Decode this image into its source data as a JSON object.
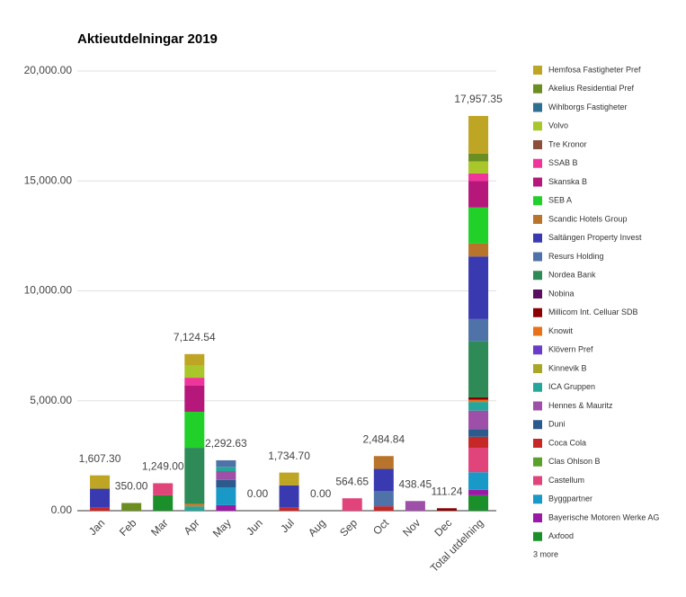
{
  "chart_data": {
    "type": "stacked_bar",
    "title": "Aktieutdelningar 2019",
    "categories": [
      "Jan",
      "Feb",
      "Mar",
      "Apr",
      "May",
      "Jun",
      "Jul",
      "Aug",
      "Sep",
      "Oct",
      "Nov",
      "Dec",
      "Total utdelning"
    ],
    "total_labels": [
      "1,607.30",
      "350.00",
      "1,249.00",
      "7,124.54",
      "2,292.63",
      "0.00",
      "1,734.70",
      "0.00",
      "564.65",
      "2,484.84",
      "438.45",
      "111.24",
      "17,957.35"
    ],
    "ylim": [
      0,
      20000
    ],
    "yticks": [
      {
        "value": 0,
        "label": "0.00"
      },
      {
        "value": 5000,
        "label": "5,000.00"
      },
      {
        "value": 10000,
        "label": "10,000.00"
      },
      {
        "value": 15000,
        "label": "15,000.00"
      },
      {
        "value": 20000,
        "label": "20,000.00"
      }
    ],
    "grid": true,
    "legend_more": "3 more",
    "series": [
      {
        "name": "Hemfosa Fastigheter Pref",
        "color": "#bfa524",
        "values": [
          607.3,
          0,
          0,
          524.54,
          0,
          0,
          584.7,
          0,
          0,
          0,
          0,
          0,
          1716.54
        ]
      },
      {
        "name": "Akelius Residential Pref",
        "color": "#6b8e23",
        "values": [
          0,
          350,
          0,
          0,
          0,
          0,
          0,
          0,
          0,
          0,
          0,
          0,
          350
        ]
      },
      {
        "name": "Wihlborgs Fastigheter",
        "color": "#2f6f8f",
        "values": [
          0,
          0,
          0,
          0,
          0,
          0,
          0,
          0,
          0,
          0,
          0,
          0,
          0
        ]
      },
      {
        "name": "Volvo",
        "color": "#a9c62a",
        "values": [
          0,
          0,
          0,
          550,
          0,
          0,
          0,
          0,
          0,
          0,
          0,
          0,
          550
        ]
      },
      {
        "name": "Tre Kronor",
        "color": "#8b4f3a",
        "values": [
          0,
          0,
          0,
          0,
          0,
          0,
          0,
          0,
          0,
          0,
          0,
          0,
          0
        ]
      },
      {
        "name": "SSAB B",
        "color": "#f0359a",
        "values": [
          0,
          0,
          0,
          350,
          0,
          0,
          0,
          0,
          0,
          0,
          0,
          0,
          350
        ]
      },
      {
        "name": "Skanska B",
        "color": "#b5187a",
        "values": [
          0,
          0,
          0,
          1200,
          0,
          0,
          0,
          0,
          0,
          0,
          0,
          0,
          1200
        ]
      },
      {
        "name": "SEB A",
        "color": "#22d02a",
        "values": [
          0,
          0,
          0,
          1640,
          0,
          0,
          0,
          0,
          0,
          0,
          0,
          0,
          1640
        ]
      },
      {
        "name": "Scandic Hotels Group",
        "color": "#b8742a",
        "values": [
          0,
          0,
          0,
          0,
          0,
          0,
          0,
          0,
          0,
          584.84,
          0,
          0,
          584.84
        ]
      },
      {
        "name": "Saltängen Property Invest",
        "color": "#3a3ab0",
        "values": [
          850,
          0,
          0,
          0,
          0,
          0,
          1000,
          0,
          0,
          1000,
          0,
          0,
          2850
        ]
      },
      {
        "name": "Resurs Holding",
        "color": "#4f73a8",
        "values": [
          0,
          0,
          0,
          0,
          300,
          0,
          0,
          0,
          0,
          700,
          0,
          0,
          1000
        ]
      },
      {
        "name": "Nordea Bank",
        "color": "#2e8b57",
        "values": [
          0,
          0,
          0,
          2560,
          0,
          0,
          0,
          0,
          0,
          0,
          0,
          0,
          2560
        ]
      },
      {
        "name": "Nobina",
        "color": "#5a1060",
        "values": [
          0,
          0,
          0,
          0,
          0,
          0,
          0,
          0,
          0,
          0,
          0,
          0,
          0
        ]
      },
      {
        "name": "Millicom Int. Celluar SDB",
        "color": "#8b0000",
        "values": [
          0,
          0,
          0,
          0,
          0,
          0,
          0,
          0,
          0,
          0,
          0,
          111.24,
          111.24
        ]
      },
      {
        "name": "Knowit",
        "color": "#e8711a",
        "values": [
          0,
          0,
          0,
          100,
          0,
          0,
          0,
          0,
          0,
          0,
          0,
          0,
          100
        ]
      },
      {
        "name": "Klövern Pref",
        "color": "#6a3cc8",
        "values": [
          0,
          0,
          0,
          0,
          0,
          0,
          0,
          0,
          0,
          0,
          0,
          0,
          0
        ]
      },
      {
        "name": "Kinnevik B",
        "color": "#a8a826",
        "values": [
          0,
          0,
          0,
          0,
          0,
          0,
          0,
          0,
          0,
          0,
          0,
          0,
          0
        ]
      },
      {
        "name": "ICA Gruppen",
        "color": "#26a69a",
        "values": [
          0,
          0,
          0,
          200,
          192.63,
          0,
          0,
          0,
          0,
          0,
          0,
          0,
          392.63
        ]
      },
      {
        "name": "Hennes & Mauritz",
        "color": "#9e4fa8",
        "values": [
          0,
          0,
          0,
          0,
          400,
          0,
          0,
          0,
          0,
          0,
          438.45,
          0,
          838.45
        ]
      },
      {
        "name": "Duni",
        "color": "#2b5a8c",
        "values": [
          0,
          0,
          0,
          0,
          350,
          0,
          0,
          0,
          0,
          0,
          0,
          0,
          350
        ]
      },
      {
        "name": "Coca Cola",
        "color": "#c62828",
        "values": [
          150,
          0,
          0,
          0,
          0,
          0,
          150,
          0,
          0,
          200,
          0,
          0,
          500
        ]
      },
      {
        "name": "Clas Ohlson B",
        "color": "#5aa02c",
        "values": [
          0,
          0,
          0,
          0,
          0,
          0,
          0,
          0,
          0,
          0,
          0,
          0,
          0
        ]
      },
      {
        "name": "Castellum",
        "color": "#e0447a",
        "values": [
          0,
          0,
          549,
          0,
          0,
          0,
          0,
          0,
          564.65,
          0,
          0,
          0,
          1113.65
        ]
      },
      {
        "name": "Byggpartner",
        "color": "#1899c8",
        "values": [
          0,
          0,
          0,
          0,
          800,
          0,
          0,
          0,
          0,
          0,
          0,
          0,
          800
        ]
      },
      {
        "name": "Bayerische Motoren Werke AG",
        "color": "#9a1aa6",
        "values": [
          0,
          0,
          0,
          0,
          250,
          0,
          0,
          0,
          0,
          0,
          0,
          0,
          250
        ]
      },
      {
        "name": "Axfood",
        "color": "#1a8f2a",
        "values": [
          0,
          0,
          700,
          0,
          0,
          0,
          0,
          0,
          0,
          0,
          0,
          0,
          700
        ]
      }
    ]
  }
}
